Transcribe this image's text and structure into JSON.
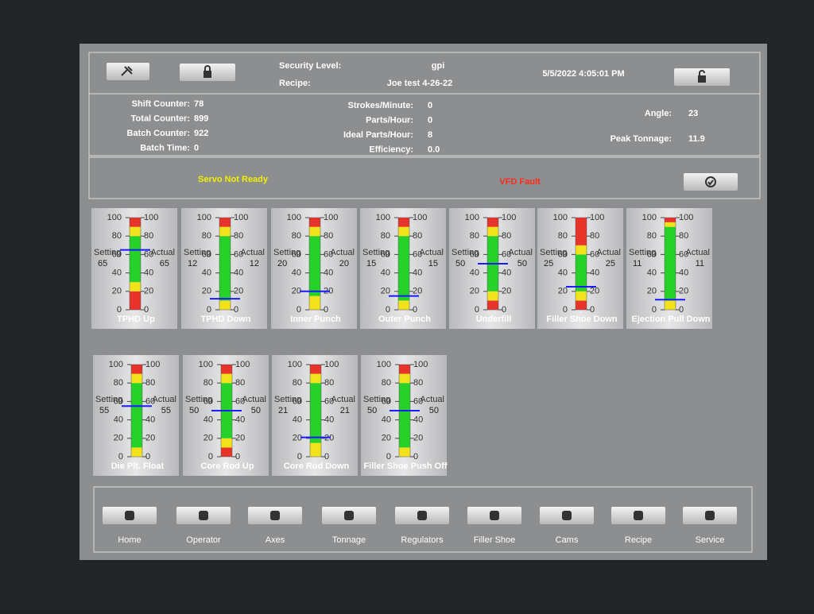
{
  "header": {
    "security_label": "Security Level:",
    "security_value": "gpi",
    "recipe_label": "Recipe:",
    "recipe_value": "Joe test 4-26-22",
    "datetime": "5/5/2022 4:05:01 PM"
  },
  "counters": {
    "left": [
      {
        "label": "Shift Counter:",
        "value": 78
      },
      {
        "label": "Total Counter:",
        "value": 899
      },
      {
        "label": "Batch Counter:",
        "value": 922
      },
      {
        "label": "Batch Time:",
        "value": 0
      }
    ],
    "middle": [
      {
        "label": "Strokes/Minute:",
        "value": 0
      },
      {
        "label": "Parts/Hour:",
        "value": 0
      },
      {
        "label": "Ideal Parts/Hour:",
        "value": 8
      },
      {
        "label": "Efficiency:",
        "value": "0.0"
      }
    ],
    "right": [
      {
        "label": "Angle:",
        "value": 23
      },
      {
        "label": "Peak Tonnage:",
        "value": 11.9
      }
    ]
  },
  "status": {
    "servo": "Servo Not Ready",
    "vfd": "VFD Fault"
  },
  "gauge_ticks": [
    0,
    20,
    40,
    60,
    80,
    100
  ],
  "setting_label": "Setting",
  "actual_label": "Actual",
  "gauges": [
    {
      "name": "TPHD Up",
      "setting": 65,
      "actual": 65,
      "bands": [
        20,
        30,
        80,
        90
      ]
    },
    {
      "name": "TPHD Down",
      "setting": 12,
      "actual": 12,
      "bands": [
        0,
        10,
        80,
        90
      ]
    },
    {
      "name": "Inner Punch",
      "setting": 20,
      "actual": 20,
      "bands": [
        0,
        15,
        80,
        90
      ]
    },
    {
      "name": "Outer Punch",
      "setting": 15,
      "actual": 15,
      "bands": [
        0,
        10,
        80,
        90
      ]
    },
    {
      "name": "Underfill",
      "setting": 50,
      "actual": 50,
      "bands": [
        10,
        20,
        80,
        90
      ]
    },
    {
      "name": "Filler Shoe Down",
      "setting": 25,
      "actual": 25,
      "bands": [
        10,
        20,
        60,
        70
      ]
    },
    {
      "name": "Ejection Pull Down",
      "setting": 11,
      "actual": 11,
      "bands": [
        0,
        10,
        90,
        95
      ]
    },
    {
      "name": "Die Plt. Float",
      "setting": 55,
      "actual": 55,
      "bands": [
        0,
        10,
        80,
        90
      ]
    },
    {
      "name": "Core Rod Up",
      "setting": 50,
      "actual": 50,
      "bands": [
        10,
        20,
        80,
        90
      ]
    },
    {
      "name": "Core Rod Down",
      "setting": 21,
      "actual": 21,
      "bands": [
        0,
        15,
        80,
        90
      ]
    },
    {
      "name": "Filler Shoe Push Off",
      "setting": 50,
      "actual": 50,
      "bands": [
        0,
        10,
        80,
        90
      ]
    }
  ],
  "nav": [
    "Home",
    "Operator",
    "Axes",
    "Tonnage",
    "Regulators",
    "Filler Shoe",
    "Cams",
    "Recipe",
    "Service"
  ]
}
